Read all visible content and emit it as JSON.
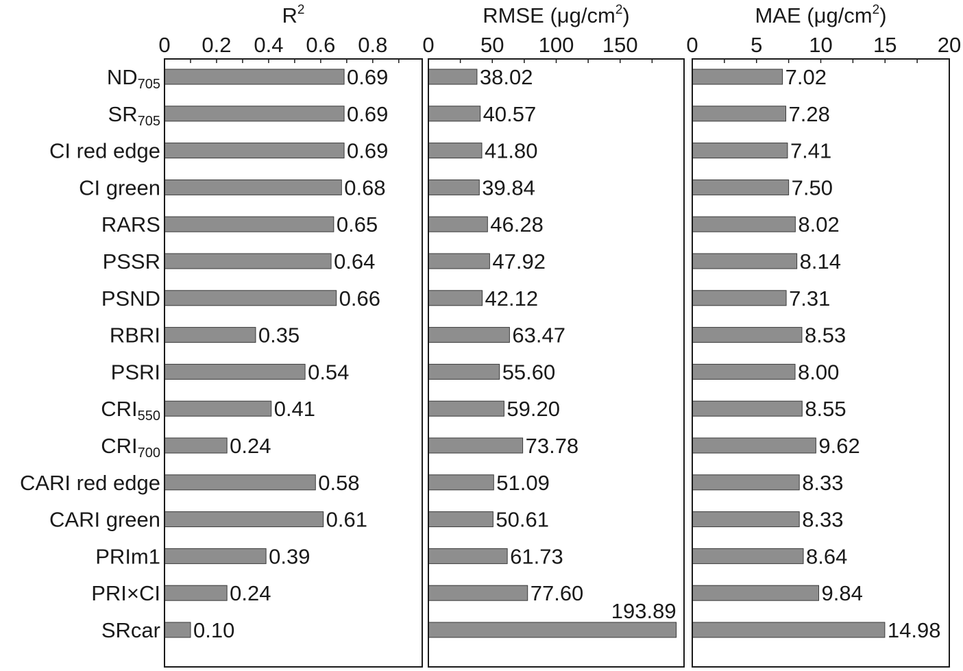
{
  "chart_data": {
    "type": "bar",
    "orientation": "horizontal",
    "categories": [
      {
        "base": "ND",
        "sub": "705"
      },
      {
        "base": "SR",
        "sub": "705"
      },
      {
        "base": "CI red edge",
        "sub": ""
      },
      {
        "base": "CI green",
        "sub": ""
      },
      {
        "base": "RARS",
        "sub": ""
      },
      {
        "base": "PSSR",
        "sub": ""
      },
      {
        "base": "PSND",
        "sub": ""
      },
      {
        "base": "RBRI",
        "sub": ""
      },
      {
        "base": "PSRI",
        "sub": ""
      },
      {
        "base": "CRI",
        "sub": "550"
      },
      {
        "base": "CRI",
        "sub": "700"
      },
      {
        "base": "CARI red edge",
        "sub": ""
      },
      {
        "base": "CARI green",
        "sub": ""
      },
      {
        "base": "PRIm1",
        "sub": ""
      },
      {
        "base": "PRI×CI",
        "sub": ""
      },
      {
        "base": "SRcar",
        "sub": ""
      }
    ],
    "panels": [
      {
        "title": "R",
        "title_sup": "2",
        "xlim": [
          0,
          0.99
        ],
        "ticks": [
          0,
          0.2,
          0.4,
          0.6,
          0.8
        ],
        "tick_labels": [
          "0",
          "0.2",
          "0.4",
          "0.6",
          "0.8"
        ],
        "minor_step": 0.1,
        "values": [
          0.69,
          0.69,
          0.69,
          0.68,
          0.65,
          0.64,
          0.66,
          0.35,
          0.54,
          0.41,
          0.24,
          0.58,
          0.61,
          0.39,
          0.24,
          0.1
        ],
        "labels": [
          "0.69",
          "0.69",
          "0.69",
          "0.68",
          "0.65",
          "0.64",
          "0.66",
          "0.35",
          "0.54",
          "0.41",
          "0.24",
          "0.58",
          "0.61",
          "0.39",
          "0.24",
          "0.10"
        ]
      },
      {
        "title": "RMSE (μg/cm",
        "title_sup": "2",
        "title_end": ")",
        "xlim": [
          0,
          200
        ],
        "ticks": [
          0,
          50,
          100,
          150
        ],
        "tick_labels": [
          "0",
          "50",
          "100",
          "150"
        ],
        "minor_step": 25,
        "values": [
          38.02,
          40.57,
          41.8,
          39.84,
          46.28,
          47.92,
          42.12,
          63.47,
          55.6,
          59.2,
          73.78,
          51.09,
          50.61,
          61.73,
          77.6,
          193.89
        ],
        "labels": [
          "38.02",
          "40.57",
          "41.80",
          "39.84",
          "46.28",
          "47.92",
          "42.12",
          "63.47",
          "55.60",
          "59.20",
          "73.78",
          "51.09",
          "50.61",
          "61.73",
          "77.60",
          "193.89"
        ]
      },
      {
        "title": "MAE (μg/cm",
        "title_sup": "2",
        "title_end": ")",
        "xlim": [
          0,
          20
        ],
        "ticks": [
          0,
          5,
          10,
          15,
          20
        ],
        "tick_labels": [
          "0",
          "5",
          "10",
          "15",
          "20"
        ],
        "minor_step": 2.5,
        "values": [
          7.02,
          7.28,
          7.41,
          7.5,
          8.02,
          8.14,
          7.31,
          8.53,
          8.0,
          8.55,
          9.62,
          8.33,
          8.33,
          8.64,
          9.84,
          14.98
        ],
        "labels": [
          "7.02",
          "7.28",
          "7.41",
          "7.50",
          "8.02",
          "8.14",
          "7.31",
          "8.53",
          "8.00",
          "8.55",
          "9.62",
          "8.33",
          "8.33",
          "8.64",
          "9.84",
          "14.98"
        ]
      }
    ],
    "colors": {
      "bar": "#8e8e8e",
      "bar_edge": "#3a3a3a",
      "frame": "#1a1a1a"
    }
  }
}
